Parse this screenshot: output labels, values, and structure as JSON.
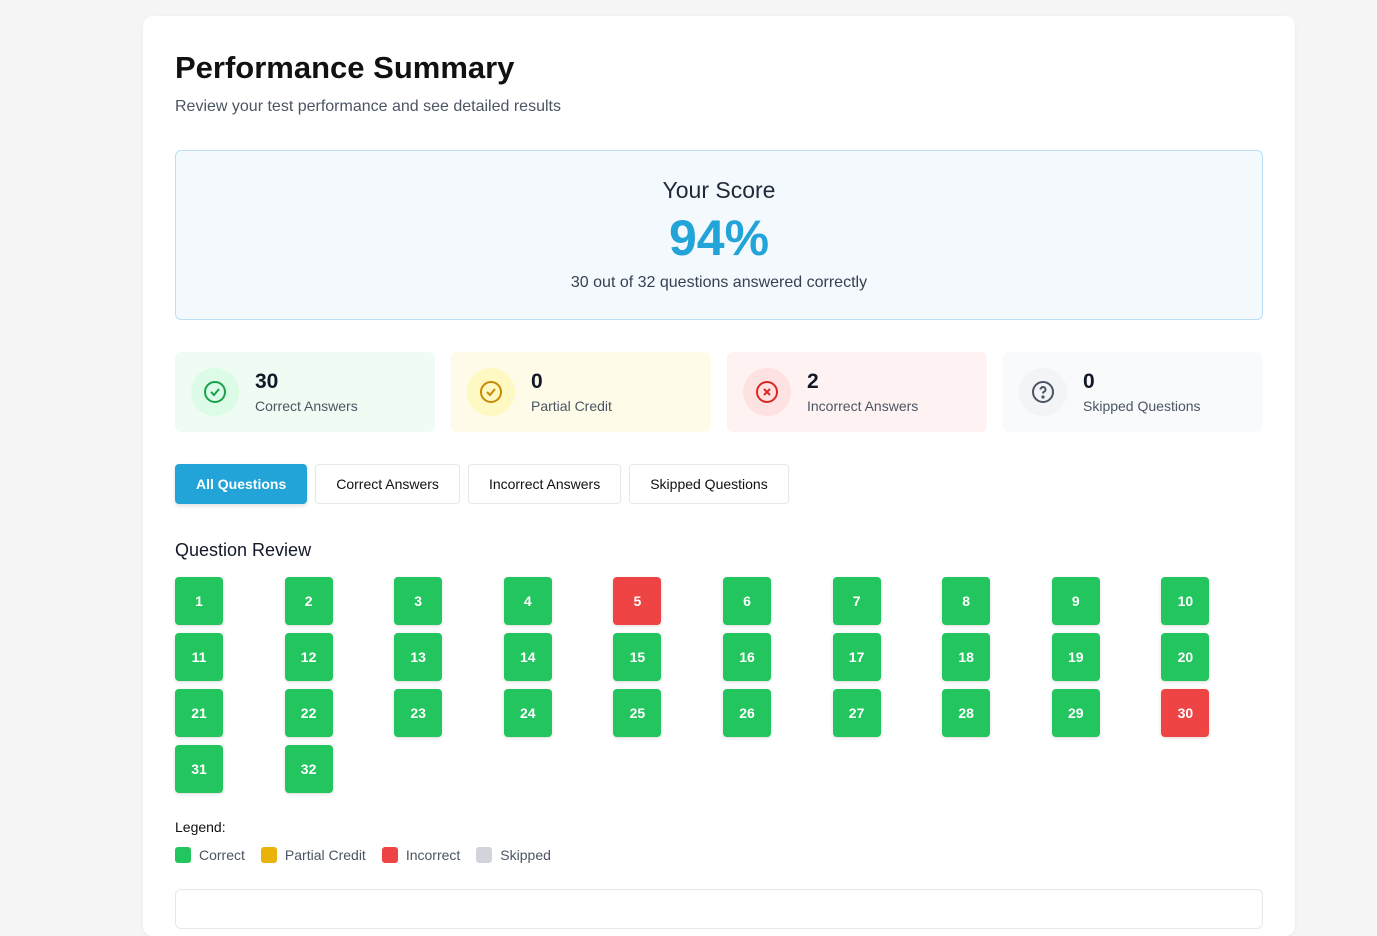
{
  "header": {
    "title": "Performance Summary",
    "subtitle": "Review your test performance and see detailed results"
  },
  "score": {
    "title": "Your Score",
    "percent": "94%",
    "detail": "30 out of 32 questions answered correctly"
  },
  "stats": [
    {
      "value": "30",
      "label": "Correct Answers",
      "icon": "check-circle-icon",
      "color": "#16a34a",
      "bg": "#effcf3",
      "iconbg": "#dcfce7"
    },
    {
      "value": "0",
      "label": "Partial Credit",
      "icon": "check-circle-icon",
      "color": "#ca8a04",
      "bg": "#fefce8",
      "iconbg": "#fef9c3"
    },
    {
      "value": "2",
      "label": "Incorrect Answers",
      "icon": "x-circle-icon",
      "color": "#dc2626",
      "bg": "#fef2f2",
      "iconbg": "#fee2e2"
    },
    {
      "value": "0",
      "label": "Skipped Questions",
      "icon": "question-circle-icon",
      "color": "#4b5563",
      "bg": "#f9fafb",
      "iconbg": "#f3f4f6"
    }
  ],
  "filters": [
    "All Questions",
    "Correct Answers",
    "Incorrect Answers",
    "Skipped Questions"
  ],
  "review": {
    "title": "Question Review",
    "questions": [
      1,
      2,
      3,
      4,
      5,
      6,
      7,
      8,
      9,
      10,
      11,
      12,
      13,
      14,
      15,
      16,
      17,
      18,
      19,
      20,
      21,
      22,
      23,
      24,
      25,
      26,
      27,
      28,
      29,
      30,
      31,
      32
    ],
    "incorrect": [
      5,
      30
    ]
  },
  "colors": {
    "correct": "#22c55e",
    "partial": "#eab308",
    "incorrect": "#ef4444",
    "skipped": "#d1d5db"
  },
  "legend": {
    "title": "Legend:",
    "items": [
      {
        "label": "Correct",
        "color": "#22c55e"
      },
      {
        "label": "Partial Credit",
        "color": "#eab308"
      },
      {
        "label": "Incorrect",
        "color": "#ef4444"
      },
      {
        "label": "Skipped",
        "color": "#d1d5db"
      }
    ]
  }
}
